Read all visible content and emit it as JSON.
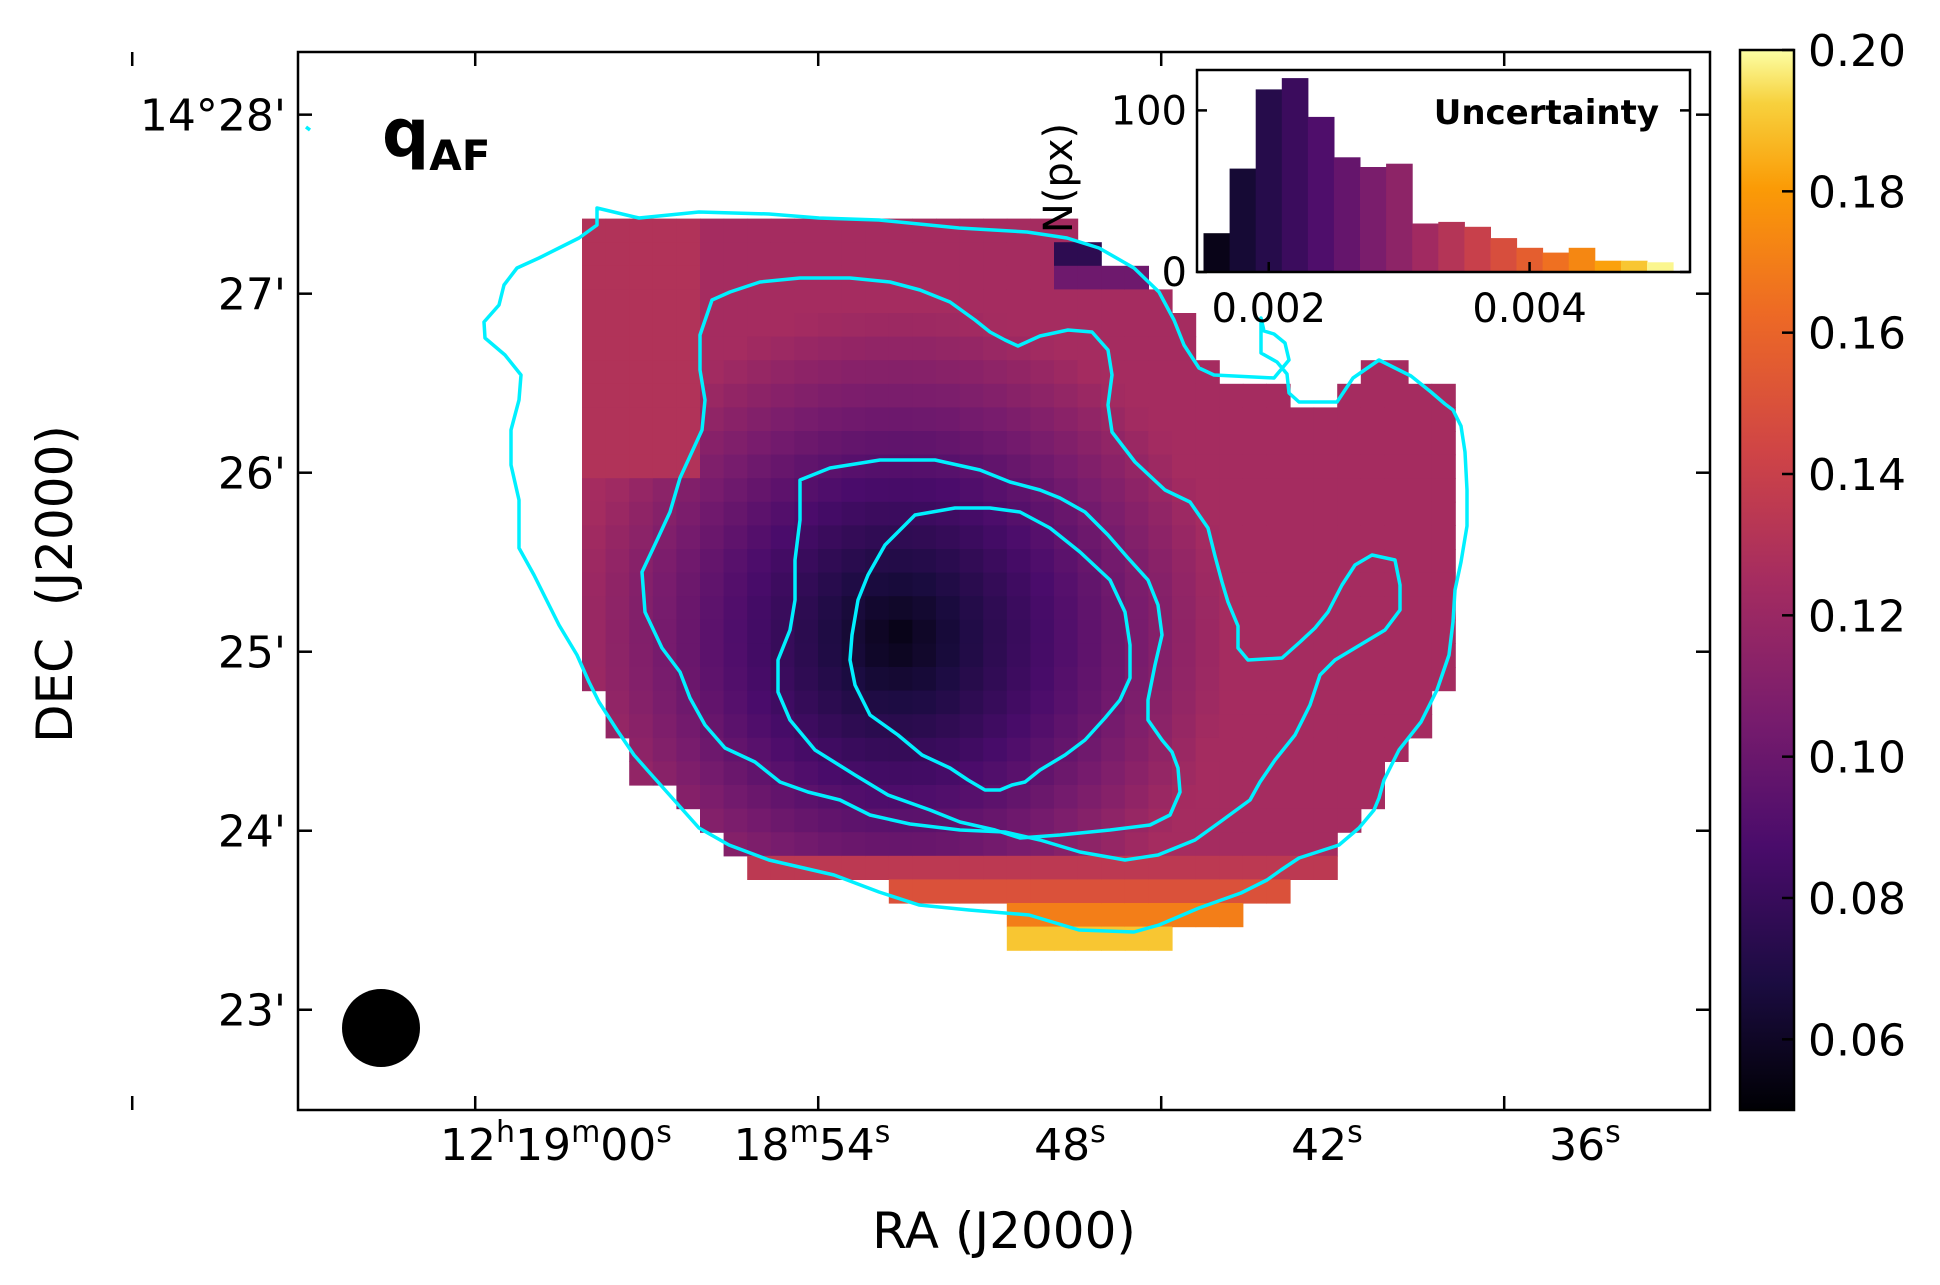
{
  "chart_data": {
    "type": "heatmap",
    "title_main": "q",
    "title_sub": "AF",
    "xlabel": "RA (J2000)",
    "ylabel": "DEC  (J2000)",
    "x_ticks": [
      {
        "h": "12",
        "m": "19",
        "s": "00",
        "seconds_offset": 0
      },
      {
        "m": "18",
        "s": "54",
        "seconds_offset": -6
      },
      {
        "s": "48",
        "seconds_offset": -12
      },
      {
        "s": "42",
        "seconds_offset": -18
      },
      {
        "s": "36",
        "seconds_offset": -24
      }
    ],
    "x_tick_text": {
      "t0": {
        "h": "12",
        "hu": "h",
        "m": "19",
        "mu": "m",
        "s": "00",
        "su": "s"
      },
      "t1": {
        "m": "18",
        "mu": "m",
        "s": "54",
        "su": "s"
      },
      "t2": {
        "s": "48",
        "su": "s"
      },
      "t3": {
        "s": "42",
        "su": "s"
      },
      "t4": {
        "s": "36",
        "su": "s"
      }
    },
    "y_ticks": [
      "14°28'",
      "27'",
      "26'",
      "25'",
      "24'",
      "23'"
    ],
    "y_tick_values_arcmin": [
      28,
      27,
      26,
      25,
      24,
      23
    ],
    "ra_range_seconds": [
      -2.9,
      -27.6
    ],
    "dec_range_arcmin": [
      22.44,
      28.35
    ],
    "colorbar": {
      "colormap": "inferno",
      "range": [
        0.05,
        0.2
      ],
      "ticks": [
        "0.20",
        "0.18",
        "0.16",
        "0.14",
        "0.12",
        "0.10",
        "0.08",
        "0.06"
      ],
      "tick_values": [
        0.2,
        0.18,
        0.16,
        0.14,
        0.12,
        0.1,
        0.08,
        0.06
      ]
    },
    "map": {
      "center_ra_seconds": -13.4,
      "center_dec_arcmin": 25.08,
      "center_value": 0.055,
      "outer_value": 0.125,
      "edge_high_values": [
        0.15,
        0.17,
        0.19
      ]
    },
    "contour_color": "#00f0ff",
    "inset": {
      "title": "Uncertainty",
      "ylabel": "N(px)",
      "xlim": [
        0.00145,
        0.00523
      ],
      "ylim": [
        0,
        125
      ],
      "x_ticks": [
        "0.002",
        "0.004"
      ],
      "x_tick_values": [
        0.002,
        0.004
      ],
      "y_ticks": [
        "100",
        "0"
      ],
      "y_tick_values": [
        100,
        0
      ],
      "bins": [
        0.0016,
        0.0018,
        0.002,
        0.0022,
        0.0024,
        0.0026,
        0.0028,
        0.003,
        0.0032,
        0.0034,
        0.0036,
        0.0038,
        0.004,
        0.0042,
        0.0044,
        0.0046,
        0.0048,
        0.005
      ],
      "counts": [
        24,
        64,
        113,
        120,
        96,
        71,
        65,
        67,
        30,
        31,
        28,
        21,
        15,
        12,
        15,
        7,
        7,
        6
      ],
      "bin_width": 0.0002
    },
    "beam": "filled-circle"
  }
}
